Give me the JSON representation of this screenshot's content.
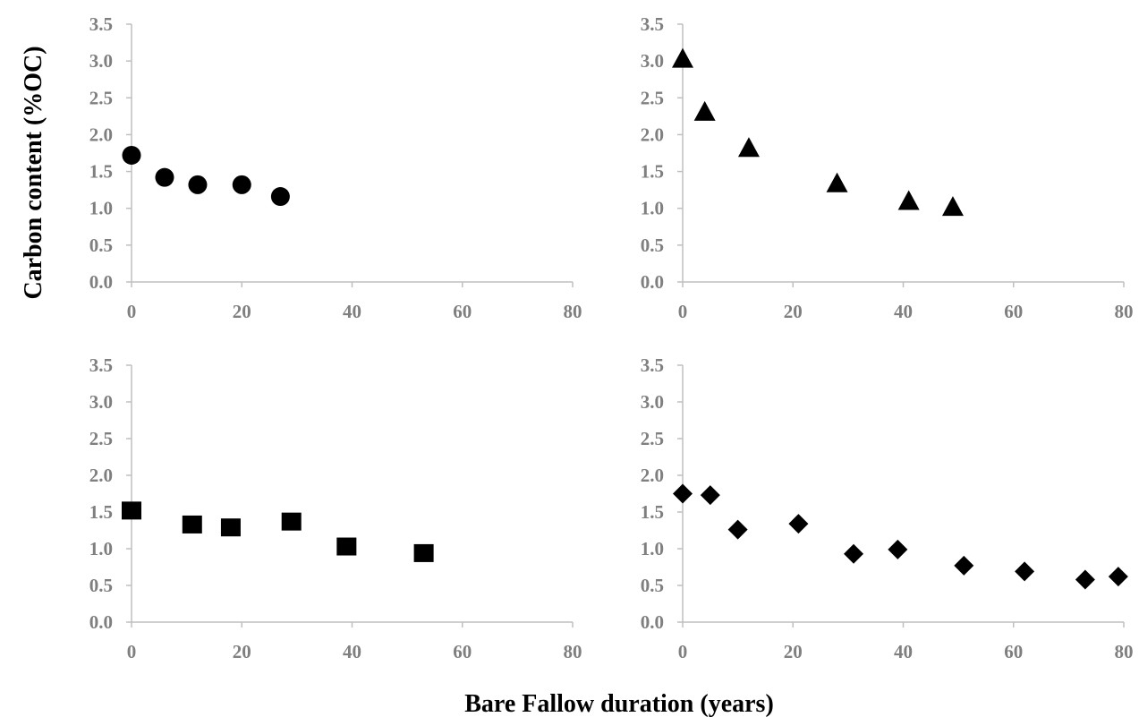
{
  "figure": {
    "ylabel": "Carbon content (%OC)",
    "xlabel": "Bare Fallow duration (years)",
    "marker_color": "#000000",
    "axis_color": "#bfbfbf",
    "tick_label_color": "#7f7f7f"
  },
  "chart_data": [
    {
      "type": "scatter",
      "panel": "top-left",
      "marker": "circle",
      "xlim": [
        0,
        80
      ],
      "ylim": [
        0,
        3.5
      ],
      "x_ticks": [
        0,
        20,
        40,
        60,
        80
      ],
      "y_ticks": [
        0.0,
        0.5,
        1.0,
        1.5,
        2.0,
        2.5,
        3.0,
        3.5
      ],
      "x_tick_labels": [
        "0",
        "20",
        "40",
        "60",
        "80"
      ],
      "y_tick_labels": [
        "0.0",
        "0.5",
        "1.0",
        "1.5",
        "2.0",
        "2.5",
        "3.0",
        "3.5"
      ],
      "x": [
        0,
        6,
        12,
        20,
        27
      ],
      "y": [
        1.72,
        1.42,
        1.32,
        1.32,
        1.16
      ]
    },
    {
      "type": "scatter",
      "panel": "top-right",
      "marker": "triangle",
      "xlim": [
        0,
        80
      ],
      "ylim": [
        0,
        3.5
      ],
      "x_ticks": [
        0,
        20,
        40,
        60,
        80
      ],
      "y_ticks": [
        0.0,
        0.5,
        1.0,
        1.5,
        2.0,
        2.5,
        3.0,
        3.5
      ],
      "x_tick_labels": [
        "0",
        "20",
        "40",
        "60",
        "80"
      ],
      "y_tick_labels": [
        "0.0",
        "0.5",
        "1.0",
        "1.5",
        "2.0",
        "2.5",
        "3.0",
        "3.5"
      ],
      "x": [
        0,
        4,
        12,
        28,
        41,
        49
      ],
      "y": [
        3.03,
        2.31,
        1.82,
        1.34,
        1.1,
        1.02
      ]
    },
    {
      "type": "scatter",
      "panel": "bottom-left",
      "marker": "square",
      "xlim": [
        0,
        80
      ],
      "ylim": [
        0,
        3.5
      ],
      "x_ticks": [
        0,
        20,
        40,
        60,
        80
      ],
      "y_ticks": [
        0.0,
        0.5,
        1.0,
        1.5,
        2.0,
        2.5,
        3.0,
        3.5
      ],
      "x_tick_labels": [
        "0",
        "20",
        "40",
        "60",
        "80"
      ],
      "y_tick_labels": [
        "0.0",
        "0.5",
        "1.0",
        "1.5",
        "2.0",
        "2.5",
        "3.0",
        "3.5"
      ],
      "x": [
        0,
        11,
        18,
        29,
        39,
        53
      ],
      "y": [
        1.52,
        1.33,
        1.29,
        1.37,
        1.03,
        0.94
      ]
    },
    {
      "type": "scatter",
      "panel": "bottom-right",
      "marker": "diamond",
      "xlim": [
        0,
        80
      ],
      "ylim": [
        0,
        3.5
      ],
      "x_ticks": [
        0,
        20,
        40,
        60,
        80
      ],
      "y_ticks": [
        0.0,
        0.5,
        1.0,
        1.5,
        2.0,
        2.5,
        3.0,
        3.5
      ],
      "x_tick_labels": [
        "0",
        "20",
        "40",
        "60",
        "80"
      ],
      "y_tick_labels": [
        "0.0",
        "0.5",
        "1.0",
        "1.5",
        "2.0",
        "2.5",
        "3.0",
        "3.5"
      ],
      "x": [
        0,
        5,
        10,
        21,
        31,
        39,
        51,
        62,
        73,
        79
      ],
      "y": [
        1.75,
        1.73,
        1.26,
        1.34,
        0.93,
        0.99,
        0.77,
        0.69,
        0.58,
        0.62
      ]
    }
  ]
}
